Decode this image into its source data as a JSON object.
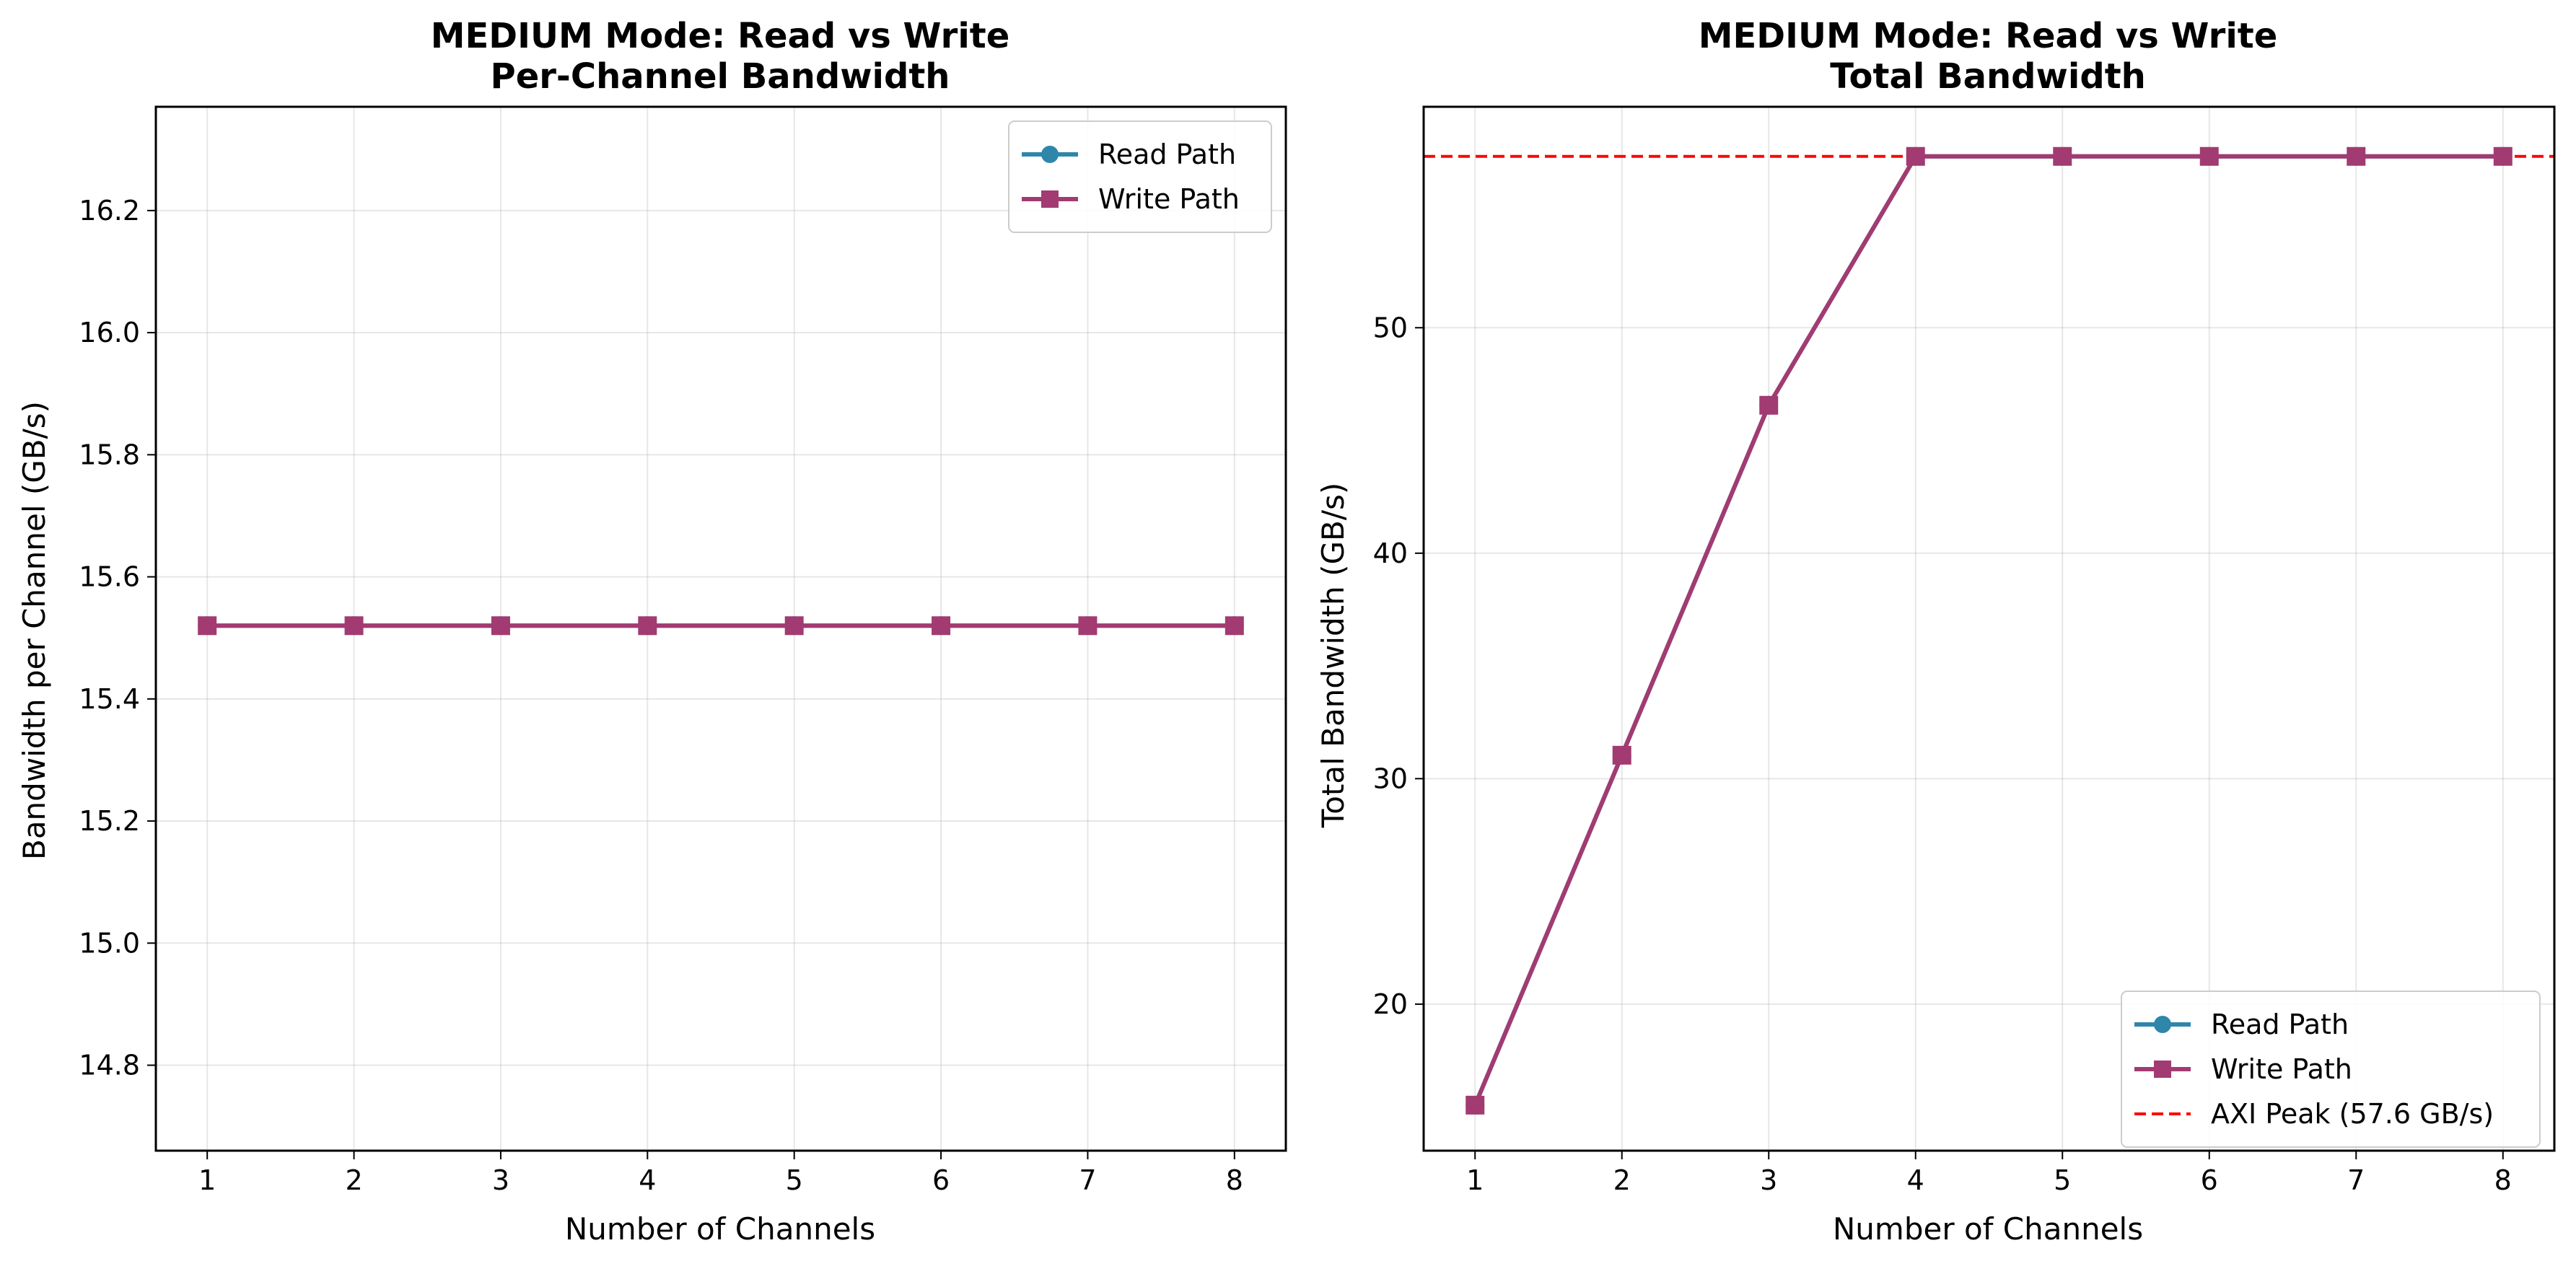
{
  "chart_data": [
    {
      "type": "line",
      "title": "MEDIUM Mode: Read vs Write",
      "subtitle": "Per-Channel Bandwidth",
      "xlabel": "Number of Channels",
      "ylabel": "Bandwidth per Channel (GB/s)",
      "x": [
        1,
        2,
        3,
        4,
        5,
        6,
        7,
        8
      ],
      "xlim": [
        0.65,
        8.35
      ],
      "ylim": [
        14.66,
        16.37
      ],
      "yticks": [
        14.8,
        15.0,
        15.2,
        15.4,
        15.6,
        15.8,
        16.0,
        16.2
      ],
      "ytick_labels": [
        "14.8",
        "15.0",
        "15.2",
        "15.4",
        "15.6",
        "15.8",
        "16.0",
        "16.2"
      ],
      "xtick_labels": [
        "1",
        "2",
        "3",
        "4",
        "5",
        "6",
        "7",
        "8"
      ],
      "grid": true,
      "legend_position": "upper right",
      "series": [
        {
          "name": "Read Path",
          "color": "#2e86ab",
          "marker": "circle",
          "values": [
            15.52,
            15.52,
            15.52,
            15.52,
            15.52,
            15.52,
            15.52,
            15.52
          ]
        },
        {
          "name": "Write Path",
          "color": "#a23b72",
          "marker": "square",
          "values": [
            15.52,
            15.52,
            15.52,
            15.52,
            15.52,
            15.52,
            15.52,
            15.52
          ]
        }
      ]
    },
    {
      "type": "line",
      "title": "MEDIUM Mode: Read vs Write",
      "subtitle": "Total Bandwidth",
      "xlabel": "Number of Channels",
      "ylabel": "Total Bandwidth (GB/s)",
      "x": [
        1,
        2,
        3,
        4,
        5,
        6,
        7,
        8
      ],
      "xlim": [
        0.65,
        8.35
      ],
      "ylim": [
        13.5,
        59.8
      ],
      "yticks": [
        20,
        30,
        40,
        50
      ],
      "ytick_labels": [
        "20",
        "30",
        "40",
        "50"
      ],
      "xtick_labels": [
        "1",
        "2",
        "3",
        "4",
        "5",
        "6",
        "7",
        "8"
      ],
      "grid": true,
      "legend_position": "lower right",
      "series": [
        {
          "name": "Read Path",
          "color": "#2e86ab",
          "marker": "circle",
          "values": [
            15.52,
            31.04,
            46.56,
            57.6,
            57.6,
            57.6,
            57.6,
            57.6
          ]
        },
        {
          "name": "Write Path",
          "color": "#a23b72",
          "marker": "square",
          "values": [
            15.52,
            31.04,
            46.56,
            57.6,
            57.6,
            57.6,
            57.6,
            57.6
          ]
        }
      ],
      "reference_line": {
        "name": "AXI Peak (57.6 GB/s)",
        "value": 57.6,
        "color": "#ff0000",
        "style": "dashed"
      }
    }
  ]
}
